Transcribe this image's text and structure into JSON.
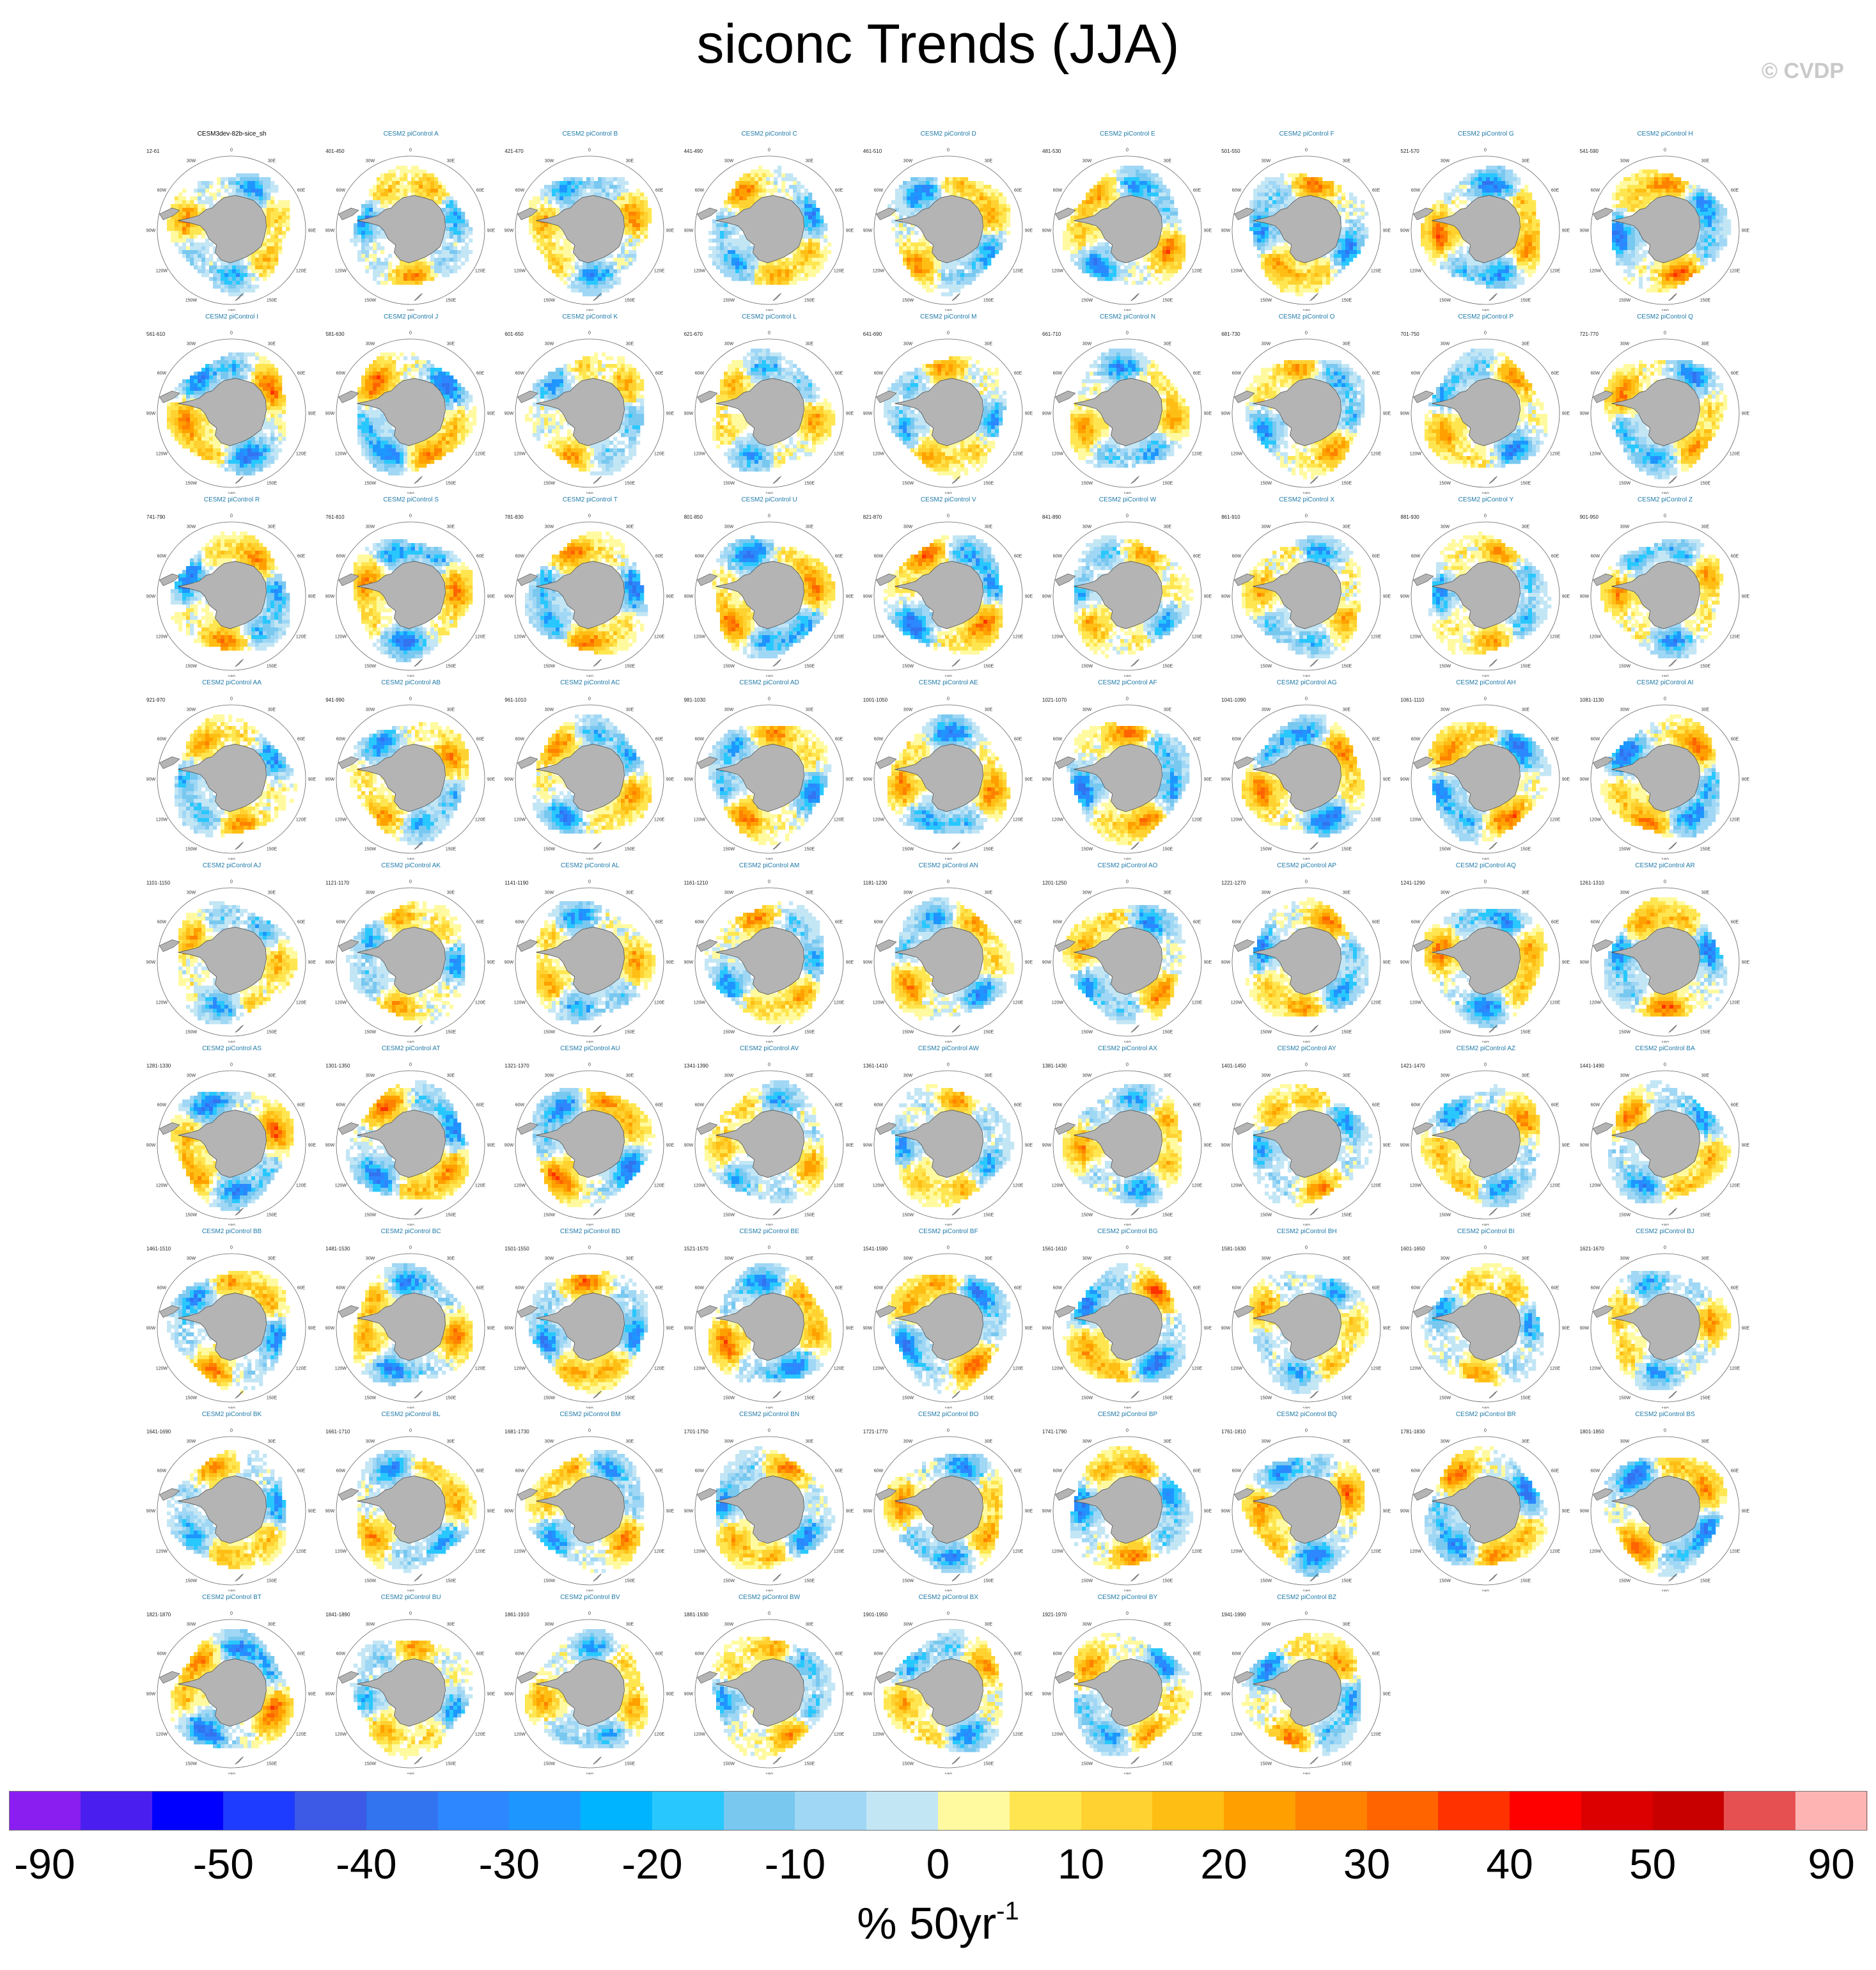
{
  "title": "siconc Trends (JJA)",
  "watermark": "© CVDP",
  "chart_data": {
    "type": "heatmap",
    "projection": "south polar stereographic",
    "variable": "siconc",
    "season": "JJA",
    "grid": {
      "rows": 10,
      "columns": 9
    },
    "map_axis_labels": [
      "0",
      "30E",
      "60E",
      "90E",
      "120E",
      "150E",
      "180",
      "150W",
      "120W",
      "90W",
      "60W",
      "30W"
    ],
    "panels": [
      {
        "name": "CESM3dev-82b-sice_sh",
        "period": "12-61",
        "first": true
      },
      {
        "name": "CESM2 piControl A",
        "period": "401-450"
      },
      {
        "name": "CESM2 piControl B",
        "period": "421-470"
      },
      {
        "name": "CESM2 piControl C",
        "period": "441-490"
      },
      {
        "name": "CESM2 piControl D",
        "period": "461-510"
      },
      {
        "name": "CESM2 piControl E",
        "period": "481-530"
      },
      {
        "name": "CESM2 piControl F",
        "period": "501-550"
      },
      {
        "name": "CESM2 piControl G",
        "period": "521-570"
      },
      {
        "name": "CESM2 piControl H",
        "period": "541-590"
      },
      {
        "name": "CESM2 piControl I",
        "period": "561-610"
      },
      {
        "name": "CESM2 piControl J",
        "period": "581-630"
      },
      {
        "name": "CESM2 piControl K",
        "period": "601-650"
      },
      {
        "name": "CESM2 piControl L",
        "period": "621-670"
      },
      {
        "name": "CESM2 piControl M",
        "period": "641-690"
      },
      {
        "name": "CESM2 piControl N",
        "period": "661-710"
      },
      {
        "name": "CESM2 piControl O",
        "period": "681-730"
      },
      {
        "name": "CESM2 piControl P",
        "period": "701-750"
      },
      {
        "name": "CESM2 piControl Q",
        "period": "721-770"
      },
      {
        "name": "CESM2 piControl R",
        "period": "741-790"
      },
      {
        "name": "CESM2 piControl S",
        "period": "761-810"
      },
      {
        "name": "CESM2 piControl T",
        "period": "781-830"
      },
      {
        "name": "CESM2 piControl U",
        "period": "801-850"
      },
      {
        "name": "CESM2 piControl V",
        "period": "821-870"
      },
      {
        "name": "CESM2 piControl W",
        "period": "841-890"
      },
      {
        "name": "CESM2 piControl X",
        "period": "861-910"
      },
      {
        "name": "CESM2 piControl Y",
        "period": "881-930"
      },
      {
        "name": "CESM2 piControl Z",
        "period": "901-950"
      },
      {
        "name": "CESM2 piControl AA",
        "period": "921-970"
      },
      {
        "name": "CESM2 piControl AB",
        "period": "941-990"
      },
      {
        "name": "CESM2 piControl AC",
        "period": "961-1010"
      },
      {
        "name": "CESM2 piControl AD",
        "period": "981-1030"
      },
      {
        "name": "CESM2 piControl AE",
        "period": "1001-1050"
      },
      {
        "name": "CESM2 piControl AF",
        "period": "1021-1070"
      },
      {
        "name": "CESM2 piControl AG",
        "period": "1041-1090"
      },
      {
        "name": "CESM2 piControl AH",
        "period": "1061-1110"
      },
      {
        "name": "CESM2 piControl AI",
        "period": "1081-1130"
      },
      {
        "name": "CESM2 piControl AJ",
        "period": "1101-1150"
      },
      {
        "name": "CESM2 piControl AK",
        "period": "1121-1170"
      },
      {
        "name": "CESM2 piControl AL",
        "period": "1141-1190"
      },
      {
        "name": "CESM2 piControl AM",
        "period": "1161-1210"
      },
      {
        "name": "CESM2 piControl AN",
        "period": "1181-1230"
      },
      {
        "name": "CESM2 piControl AO",
        "period": "1201-1250"
      },
      {
        "name": "CESM2 piControl AP",
        "period": "1221-1270"
      },
      {
        "name": "CESM2 piControl AQ",
        "period": "1241-1290"
      },
      {
        "name": "CESM2 piControl AR",
        "period": "1261-1310"
      },
      {
        "name": "CESM2 piControl AS",
        "period": "1281-1330"
      },
      {
        "name": "CESM2 piControl AT",
        "period": "1301-1350"
      },
      {
        "name": "CESM2 piControl AU",
        "period": "1321-1370"
      },
      {
        "name": "CESM2 piControl AV",
        "period": "1341-1390"
      },
      {
        "name": "CESM2 piControl AW",
        "period": "1361-1410"
      },
      {
        "name": "CESM2 piControl AX",
        "period": "1381-1430"
      },
      {
        "name": "CESM2 piControl AY",
        "period": "1401-1450"
      },
      {
        "name": "CESM2 piControl AZ",
        "period": "1421-1470"
      },
      {
        "name": "CESM2 piControl BA",
        "period": "1441-1490"
      },
      {
        "name": "CESM2 piControl BB",
        "period": "1461-1510"
      },
      {
        "name": "CESM2 piControl BC",
        "period": "1481-1530"
      },
      {
        "name": "CESM2 piControl BD",
        "period": "1501-1550"
      },
      {
        "name": "CESM2 piControl BE",
        "period": "1521-1570"
      },
      {
        "name": "CESM2 piControl BF",
        "period": "1541-1590"
      },
      {
        "name": "CESM2 piControl BG",
        "period": "1561-1610"
      },
      {
        "name": "CESM2 piControl BH",
        "period": "1581-1630"
      },
      {
        "name": "CESM2 piControl BI",
        "period": "1601-1650"
      },
      {
        "name": "CESM2 piControl BJ",
        "period": "1621-1670"
      },
      {
        "name": "CESM2 piControl BK",
        "period": "1641-1690"
      },
      {
        "name": "CESM2 piControl BL",
        "period": "1661-1710"
      },
      {
        "name": "CESM2 piControl BM",
        "period": "1681-1730"
      },
      {
        "name": "CESM2 piControl BN",
        "period": "1701-1750"
      },
      {
        "name": "CESM2 piControl BO",
        "period": "1721-1770"
      },
      {
        "name": "CESM2 piControl BP",
        "period": "1741-1790"
      },
      {
        "name": "CESM2 piControl BQ",
        "period": "1761-1810"
      },
      {
        "name": "CESM2 piControl BR",
        "period": "1781-1830"
      },
      {
        "name": "CESM2 piControl BS",
        "period": "1801-1850"
      },
      {
        "name": "CESM2 piControl BT",
        "period": "1821-1870"
      },
      {
        "name": "CESM2 piControl BU",
        "period": "1841-1890"
      },
      {
        "name": "CESM2 piControl BV",
        "period": "1861-1910"
      },
      {
        "name": "CESM2 piControl BW",
        "period": "1881-1930"
      },
      {
        "name": "CESM2 piControl BX",
        "period": "1901-1950"
      },
      {
        "name": "CESM2 piControl BY",
        "period": "1921-1970"
      },
      {
        "name": "CESM2 piControl BZ",
        "period": "1941-1990"
      }
    ],
    "colorbar": {
      "units": "% 50yr",
      "units_exponent": "-1",
      "tick_labels": [
        "-90",
        "-50",
        "-40",
        "-30",
        "-20",
        "-10",
        "0",
        "10",
        "20",
        "30",
        "40",
        "50",
        "90"
      ],
      "colors": [
        "#8a1ef0",
        "#4b1ef0",
        "#0000ff",
        "#1e3cff",
        "#3c5ae6",
        "#3273f0",
        "#2d87ff",
        "#1e96ff",
        "#00b4ff",
        "#28c8ff",
        "#78c8f0",
        "#a0d7f5",
        "#c3e6f5",
        "#fffaa0",
        "#ffe650",
        "#ffd232",
        "#ffbe14",
        "#ffa000",
        "#ff8200",
        "#ff6400",
        "#ff3200",
        "#ff0000",
        "#dc0000",
        "#c80000",
        "#e65050",
        "#ffb4b4"
      ]
    },
    "colors": {
      "land": "#b4b4b4",
      "panel_title": "#1f7aa8"
    }
  }
}
